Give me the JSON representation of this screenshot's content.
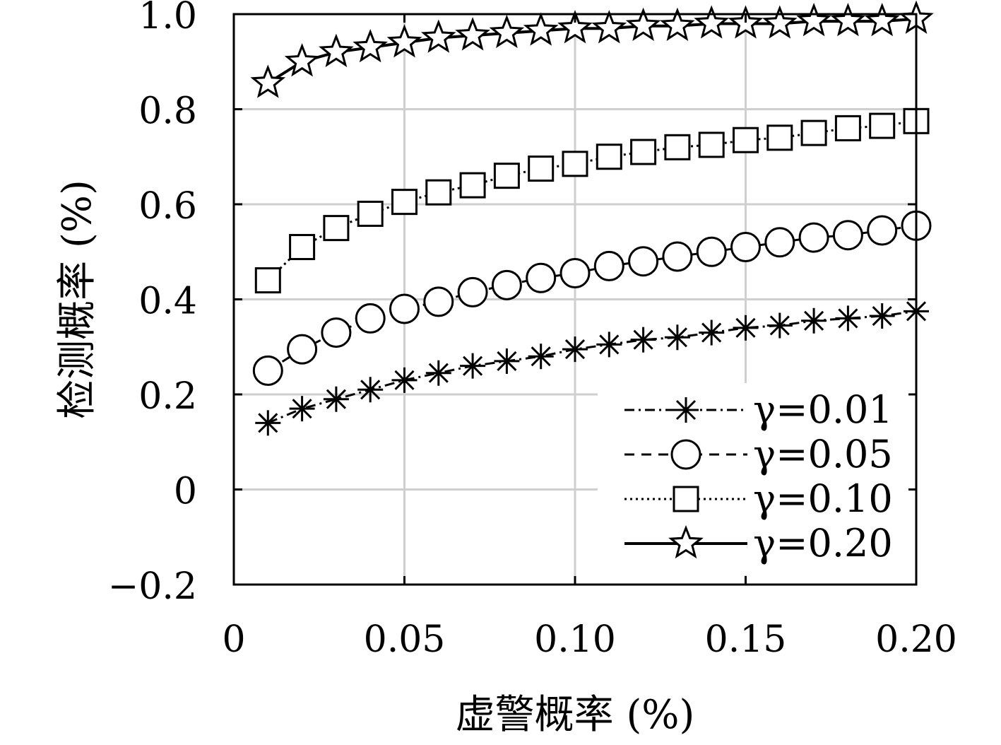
{
  "chart_data": {
    "type": "line",
    "xlabel": "虚警概率 (%)",
    "ylabel": "检测概率 (%)",
    "xlim": [
      0,
      0.2
    ],
    "ylim": [
      -0.2,
      1.0
    ],
    "x_ticks": [
      "0",
      "0.05",
      "0.10",
      "0.15",
      "0.20"
    ],
    "y_ticks": [
      "−0.2",
      "0",
      "0.2",
      "0.4",
      "0.6",
      "0.8",
      "1.0"
    ],
    "grid": true,
    "legend_position": "bottom-right",
    "x": [
      0.01,
      0.02,
      0.03,
      0.04,
      0.05,
      0.06,
      0.07,
      0.08,
      0.09,
      0.1,
      0.11,
      0.12,
      0.13,
      0.14,
      0.15,
      0.16,
      0.17,
      0.18,
      0.19,
      0.2
    ],
    "series": [
      {
        "name": "γ=0.01",
        "marker": "asterisk",
        "line_style": "dash-dot",
        "values": [
          0.14,
          0.17,
          0.19,
          0.21,
          0.23,
          0.245,
          0.26,
          0.27,
          0.28,
          0.295,
          0.305,
          0.315,
          0.32,
          0.33,
          0.34,
          0.345,
          0.355,
          0.36,
          0.365,
          0.375
        ]
      },
      {
        "name": "γ=0.05",
        "marker": "circle",
        "line_style": "dashed",
        "values": [
          0.25,
          0.295,
          0.33,
          0.36,
          0.38,
          0.395,
          0.415,
          0.43,
          0.445,
          0.455,
          0.47,
          0.48,
          0.49,
          0.5,
          0.51,
          0.52,
          0.53,
          0.535,
          0.545,
          0.555
        ]
      },
      {
        "name": "γ=0.10",
        "marker": "square",
        "line_style": "dotted",
        "values": [
          0.44,
          0.51,
          0.55,
          0.58,
          0.605,
          0.625,
          0.64,
          0.66,
          0.675,
          0.685,
          0.7,
          0.71,
          0.72,
          0.725,
          0.735,
          0.74,
          0.75,
          0.76,
          0.765,
          0.775
        ]
      },
      {
        "name": "γ=0.20",
        "marker": "star",
        "line_style": "solid",
        "values": [
          0.855,
          0.9,
          0.92,
          0.93,
          0.94,
          0.95,
          0.955,
          0.96,
          0.965,
          0.97,
          0.97,
          0.975,
          0.975,
          0.98,
          0.98,
          0.98,
          0.985,
          0.985,
          0.985,
          0.99
        ]
      }
    ]
  }
}
